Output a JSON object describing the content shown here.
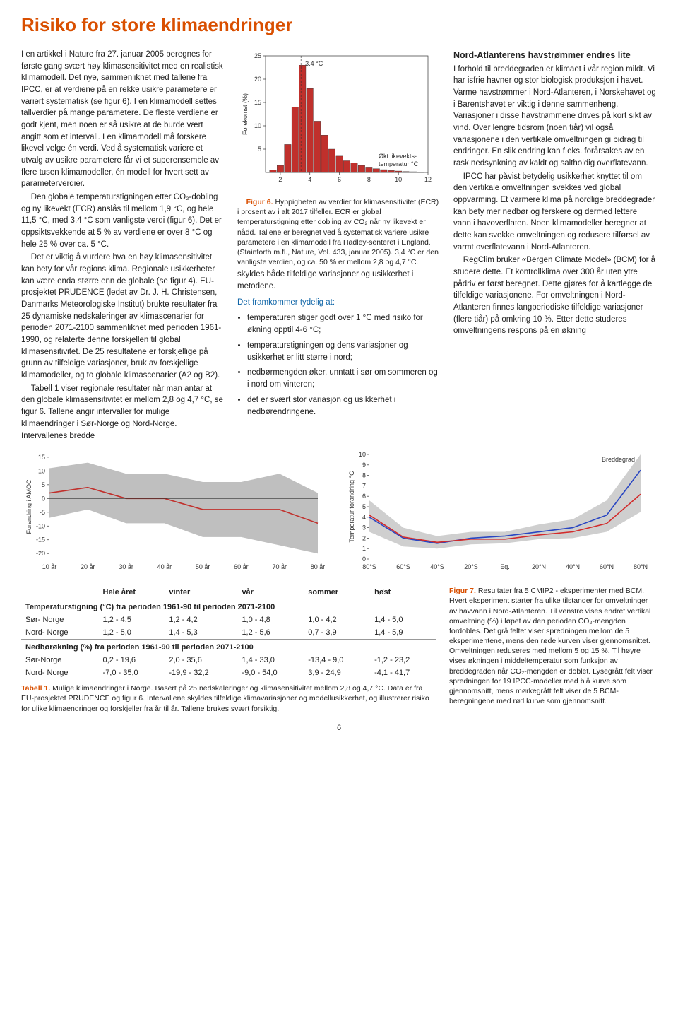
{
  "title": "Risiko for store klimaendringer",
  "col1": {
    "p1": "I en artikkel i Nature fra 27. januar 2005 beregnes for første gang svært høy klimasensitivitet med en realistisk klimamodell. Det nye, sammenliknet med tallene fra IPCC, er at verdiene på en rekke usikre parametere er variert systematisk (se figur 6). I en klimamodell settes tallverdier på mange parametere. De fleste verdiene er godt kjent, men noen er så usikre at de burde vært angitt som et intervall. I en klimamodell må forskere likevel velge én verdi. Ved å systematisk variere et utvalg av usikre parametere får vi et superensemble av flere tusen klimamodeller, én modell for hvert sett av parameterverdier.",
    "p2": "Den globale temperaturstigningen etter CO₂-dobling og ny likevekt (ECR) anslås til mellom 1,9 °C, og hele 11,5 °C, med 3,4 °C som vanligste verdi (figur 6). Det er oppsiktsvekkende at 5 % av verdiene er over 8 °C og hele 25 % over ca. 5 °C.",
    "p3": "Det er viktig å vurdere hva en høy klimasensitivitet kan bety for vår regions klima. Regionale usikkerheter kan være enda større enn de globale (se figur 4). EU-prosjektet PRUDENCE (ledet av Dr. J. H. Christensen, Danmarks Meteorologiske Institut) brukte resultater fra 25 dynamiske nedskaleringer av klimascenarier for perioden 2071-2100 sammenliknet med perioden 1961-1990, og relaterte denne forskjellen til global klimasensitivitet. De 25 resultatene er forskjellige på grunn av tilfeldige variasjoner, bruk av forskjellige klimamodeller, og to globale klimascenarier (A2 og B2).",
    "p4": "Tabell 1 viser regionale resultater når man antar at den globale klimasensitivitet er mellom 2,8 og 4,7 °C, se figur 6. Tallene angir intervaller for mulige klimaendringer i Sør-Norge og Nord-Norge. Intervallenes bredde"
  },
  "fig6": {
    "type": "histogram",
    "title_label": "3.4 °C",
    "ylabel": "Forekomst (%)",
    "xlabel": "Økt likevekts-\ntemperatur °C",
    "bar_color": "#c0302c",
    "edge_color": "#333333",
    "background": "#ffffff",
    "xticks": [
      2,
      4,
      6,
      8,
      10,
      12
    ],
    "yticks": [
      5,
      10,
      15,
      20,
      25
    ],
    "xlim": [
      1,
      12
    ],
    "ylim": [
      0,
      25
    ],
    "bins": [
      1.5,
      2.0,
      2.5,
      3.0,
      3.5,
      4.0,
      4.5,
      5.0,
      5.5,
      6.0,
      6.5,
      7.0,
      7.5,
      8.0,
      8.5,
      9.0,
      9.5,
      10.0,
      10.5,
      11.0,
      11.5
    ],
    "heights": [
      0.5,
      1.5,
      6.0,
      14,
      23,
      18,
      11,
      8,
      5,
      3.5,
      2.5,
      2,
      1.5,
      1,
      0.8,
      0.6,
      0.4,
      0.3,
      0.2,
      0.15,
      0.1
    ]
  },
  "fig6_caption_label": "Figur 6.",
  "fig6_caption": " Hyppigheten av verdier for klimasensitivitet (ECR) i prosent av i alt 2017 tilfeller. ECR er global temperaturstigning etter dobling av CO₂ når ny likevekt er nådd. Tallene er beregnet ved å systematisk variere usikre parametere i en klimamodell fra Hadley-senteret i England. (Stainforth m.fl., Nature, Vol. 433, januar 2005). 3,4 °C er den vanligste verdien, og ca. 50 % er mellom 2,8 og 4,7 °C.",
  "col2_p1": "skyldes både tilfeldige variasjoner og usikkerhet i metodene.",
  "col2_sub": "Det framkommer tydelig at:",
  "bullets": [
    "temperaturen stiger godt over 1 °C med risiko for økning opptil 4-6 °C;",
    "temperaturstigningen og dens variasjoner og usikkerhet er litt større i nord;",
    "nedbørmengden øker, unntatt i sør om sommeren og i nord om vinteren;",
    "det er svært stor variasjon og usikkerhet i nedbørendringene."
  ],
  "col3_h": "Nord-Atlanterens havstrømmer endres lite",
  "col3_p1": "I forhold til breddegraden er klimaet i vår region mildt. Vi har isfrie havner og stor biologisk produksjon i havet. Varme havstrømmer i Nord-Atlanteren, i Norskehavet og i Barentshavet er viktig i denne sammenheng. Variasjoner i disse havstrømmene drives på kort sikt av vind. Over lengre tidsrom (noen tiår) vil også variasjonene i den vertikale omveltningen gi bidrag til endringer. En slik endring kan f.eks. forårsakes av en rask nedsynkning av kaldt og saltholdig overflatevann.",
  "col3_p2": "IPCC har påvist betydelig usikkerhet knyttet til om den vertikale omveltningen svekkes ved global oppvarming. Et varmere klima på nordlige breddegrader kan bety mer nedbør og ferskere og dermed lettere vann i havoverflaten. Noen klimamodeller beregner at dette kan svekke omveltningen og redusere tilførsel av varmt overflatevann i Nord-Atlanteren.",
  "col3_p3": "RegClim bruker «Bergen Climate Model» (BCM) for å studere dette. Et kontrollklima over 300 år uten ytre pådriv er først beregnet. Dette gjøres for å kartlegge de tilfeldige variasjonene. For omveltningen i Nord-Atlanteren finnes langperiodiske tilfeldige variasjoner (flere tiår) på omkring 10 %. Etter dette studeres omveltningens respons på en økning",
  "fig7L": {
    "type": "line-band",
    "ylabel": "Forandring i AMOC",
    "yticks": [
      -20,
      -15,
      -10,
      -5,
      0,
      5,
      10,
      15
    ],
    "xticks": [
      "10 år",
      "20 år",
      "30 år",
      "40 år",
      "50 år",
      "60 år",
      "70 år",
      "80 år"
    ],
    "band_color": "#bfbfbf",
    "line_color": "#c0302c",
    "ylim": [
      -22,
      16
    ],
    "x": [
      10,
      20,
      30,
      40,
      50,
      60,
      70,
      80
    ],
    "mean": [
      2,
      4,
      0,
      0,
      -4,
      -4,
      -4,
      -9
    ],
    "lo": [
      -7,
      -4,
      -9,
      -9,
      -14,
      -14,
      -17,
      -20
    ],
    "hi": [
      11,
      13,
      9,
      9,
      6,
      6,
      9,
      2
    ]
  },
  "fig7R": {
    "type": "line-band",
    "ylabel": "Temperatur forandring °C",
    "xlabel": "Breddegrad",
    "yticks": [
      0,
      1,
      2,
      3,
      4,
      5,
      6,
      7,
      8,
      9,
      10
    ],
    "xticks": [
      "80°S",
      "60°S",
      "40°S",
      "20°S",
      "Eq.",
      "20°N",
      "40°N",
      "60°N",
      "80°N"
    ],
    "band_color": "#cfcfcf",
    "lines": {
      "blue": "#2946c2",
      "red": "#d22b2b"
    },
    "ylim": [
      0,
      10
    ],
    "x": [
      -80,
      -60,
      -40,
      -20,
      0,
      20,
      40,
      60,
      80
    ],
    "blue": [
      4,
      2,
      1.5,
      2,
      2.2,
      2.6,
      3,
      4.2,
      8.5
    ],
    "red": [
      4.2,
      2.1,
      1.6,
      1.9,
      1.9,
      2.3,
      2.6,
      3.4,
      6.2
    ],
    "lo": [
      2.6,
      1.2,
      1.0,
      1.4,
      1.5,
      1.9,
      2.0,
      2.6,
      4.5
    ],
    "hi": [
      5.6,
      3.0,
      2.2,
      2.6,
      2.6,
      3.3,
      3.8,
      5.6,
      10
    ]
  },
  "fig7_caption_label": "Figur 7.",
  "fig7_caption": " Resultater fra 5 CMIP2 - eksperimenter med BCM. Hvert eksperiment starter fra ulike tilstander for omveltninger av havvann i Nord-Atlanteren. Til venstre vises endret vertikal omveltning (%) i løpet av den perioden CO₂-mengden fordobles. Det grå feltet viser spredningen mellom de 5 eksperimentene, mens den røde kurven viser gjennomsnittet. Omveltningen reduseres med mellom 5 og 15 %. Til høyre vises økningen i middeltemperatur som funksjon av breddegraden når CO₂-mengden er doblet. Lysegrått felt viser spredningen for 19 IPCC-modeller med blå kurve som gjennomsnitt, mens mørkegrått felt viser de 5 BCM-beregningene med rød kurve som gjennomsnitt.",
  "table": {
    "headers": [
      "",
      "Hele året",
      "vinter",
      "vår",
      "sommer",
      "høst"
    ],
    "section1": "Temperaturstigning (°C) fra perioden 1961-90 til perioden 2071-2100",
    "rows1": [
      [
        "Sør- Norge",
        "1,2 - 4,5",
        "1,2 - 4,2",
        "1,0 - 4,8",
        "1,0 - 4,2",
        "1,4 - 5,0"
      ],
      [
        "Nord- Norge",
        "1,2 - 5,0",
        "1,4 - 5,3",
        "1,2 - 5,6",
        "0,7 - 3,9",
        "1,4 - 5,9"
      ]
    ],
    "section2": "Nedbørøkning (%) fra perioden 1961-90 til perioden 2071-2100",
    "rows2": [
      [
        "Sør-Norge",
        "0,2 - 19,6",
        "2,0 - 35,6",
        "1,4 - 33,0",
        "-13,4 - 9,0",
        "-1,2 - 23,2"
      ],
      [
        "Nord- Norge",
        "-7,0 - 35,0",
        "-19,9 - 32,2",
        "-9,0 - 54,0",
        "3,9 - 24,9",
        "-4,1 - 41,7"
      ]
    ]
  },
  "tbl_caption_label": "Tabell 1.",
  "tbl_caption": " Mulige klimaendringer i Norge. Basert på 25 nedskaleringer og klimasensitivitet mellom 2,8 og 4,7 °C. Data er fra EU-prosjektet PRUDENCE og figur 6. Intervallene skyldes tilfeldige klimavariasjoner og modellusikkerhet, og illustrerer risiko for ulike klimaendringer og forskjeller fra år til år. Tallene brukes svært forsiktig.",
  "pagenum": "6"
}
